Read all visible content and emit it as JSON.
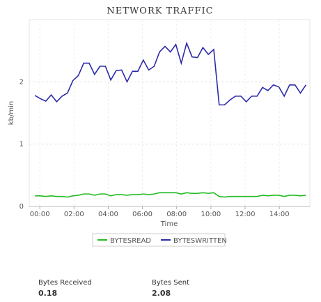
{
  "chart_data": {
    "type": "line",
    "title": "NETWORK TRAFFIC",
    "x_label": "Time",
    "y_label": "kb/min",
    "x": [
      -17,
      2,
      21,
      40,
      59,
      78,
      97,
      116,
      135,
      154,
      173,
      192,
      211,
      230,
      249,
      268,
      287,
      306,
      325,
      344,
      363,
      382,
      401,
      420,
      439,
      458,
      477,
      496,
      515,
      534,
      553,
      572,
      591,
      610,
      629,
      648,
      667,
      686,
      705,
      724,
      743,
      762,
      781,
      800,
      819,
      838,
      857,
      876,
      895,
      914,
      933
    ],
    "series": [
      {
        "name": "BYTESREAD",
        "color": "#22bb22",
        "values": [
          0.17,
          0.17,
          0.16,
          0.17,
          0.16,
          0.16,
          0.15,
          0.17,
          0.18,
          0.2,
          0.2,
          0.18,
          0.2,
          0.2,
          0.17,
          0.19,
          0.19,
          0.18,
          0.19,
          0.19,
          0.2,
          0.19,
          0.2,
          0.22,
          0.22,
          0.22,
          0.22,
          0.2,
          0.22,
          0.21,
          0.21,
          0.22,
          0.21,
          0.22,
          0.16,
          0.15,
          0.16,
          0.16,
          0.16,
          0.16,
          0.16,
          0.16,
          0.18,
          0.17,
          0.18,
          0.18,
          0.16,
          0.18,
          0.18,
          0.17,
          0.18
        ]
      },
      {
        "name": "BYTESWRITTEN",
        "color": "#2b2ba8",
        "values": [
          1.78,
          1.73,
          1.69,
          1.79,
          1.68,
          1.77,
          1.82,
          2.02,
          2.1,
          2.3,
          2.3,
          2.12,
          2.25,
          2.25,
          2.03,
          2.18,
          2.19,
          2.0,
          2.17,
          2.17,
          2.35,
          2.19,
          2.25,
          2.48,
          2.57,
          2.48,
          2.6,
          2.3,
          2.62,
          2.4,
          2.39,
          2.55,
          2.44,
          2.52,
          1.63,
          1.63,
          1.71,
          1.77,
          1.77,
          1.68,
          1.77,
          1.77,
          1.91,
          1.86,
          1.95,
          1.92,
          1.77,
          1.95,
          1.95,
          1.82,
          1.95
        ]
      }
    ],
    "xlim": [
      -37,
      947
    ],
    "xticks": [
      {
        "value": 0,
        "label": "00:00"
      },
      {
        "value": 120,
        "label": "02:00"
      },
      {
        "value": 240,
        "label": "04:00"
      },
      {
        "value": 360,
        "label": "06:00"
      },
      {
        "value": 480,
        "label": "08:00"
      },
      {
        "value": 600,
        "label": "10:00"
      },
      {
        "value": 720,
        "label": "12:00"
      },
      {
        "value": 840,
        "label": "14:00"
      }
    ],
    "ylim": [
      0,
      3
    ],
    "yticks": [
      0,
      1,
      2
    ],
    "grid": true
  },
  "summary": [
    {
      "label": "Bytes Received",
      "value": 0.18
    },
    {
      "label": "Bytes Sent",
      "value": 2.08
    }
  ]
}
